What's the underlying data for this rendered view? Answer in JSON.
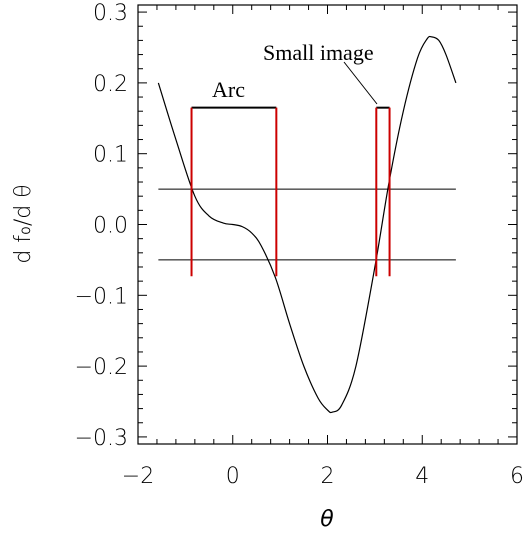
{
  "chart_data": {
    "type": "line",
    "title": "",
    "xlabel": "θ",
    "ylabel": "d f₀/d θ",
    "xlim": [
      -2,
      6
    ],
    "ylim": [
      -0.31,
      0.31
    ],
    "xticks": [
      -2,
      0,
      2,
      4,
      6
    ],
    "xtick_labels": [
      "−2",
      "0",
      "2",
      "4",
      "6"
    ],
    "yticks": [
      -0.3,
      -0.2,
      -0.1,
      0.0,
      0.1,
      0.2,
      0.3
    ],
    "ytick_labels": [
      "−0.3",
      "−0.2",
      "−0.1",
      "0.0",
      "0.1",
      "0.2",
      "0.3"
    ],
    "grid": false,
    "series": [
      {
        "color": "#000000",
        "x": [
          -1.57,
          -1.2,
          -0.8,
          -0.5,
          -0.2,
          0.0,
          0.2,
          0.4,
          0.6,
          0.9,
          1.2,
          1.5,
          1.8,
          2.0,
          2.1,
          2.3,
          2.6,
          3.0,
          3.3,
          3.6,
          3.9,
          4.1,
          4.2,
          4.35,
          4.5,
          4.71
        ],
        "y": [
          0.2,
          0.12,
          0.04,
          0.012,
          0.002,
          0.0,
          -0.003,
          -0.012,
          -0.03,
          -0.075,
          -0.14,
          -0.2,
          -0.245,
          -0.262,
          -0.265,
          -0.255,
          -0.2,
          -0.06,
          0.06,
          0.16,
          0.235,
          0.262,
          0.265,
          0.26,
          0.24,
          0.2
        ]
      }
    ],
    "reference_lines": {
      "color": "#000000",
      "x_range": [
        -1.57,
        4.71
      ],
      "y": [
        0.05,
        -0.05
      ]
    },
    "intervals": [
      {
        "label": "Arc",
        "x1": -0.87,
        "x2": 0.92,
        "y_top": 0.165,
        "y_bottom": -0.073,
        "color": "#cc0000"
      },
      {
        "label": "Small image",
        "x1": 3.03,
        "x2": 3.31,
        "y_top": 0.165,
        "y_bottom": -0.073,
        "color": "#cc0000"
      }
    ],
    "annotations": {
      "arc_label": "Arc",
      "small_image_label": "Small image"
    }
  }
}
